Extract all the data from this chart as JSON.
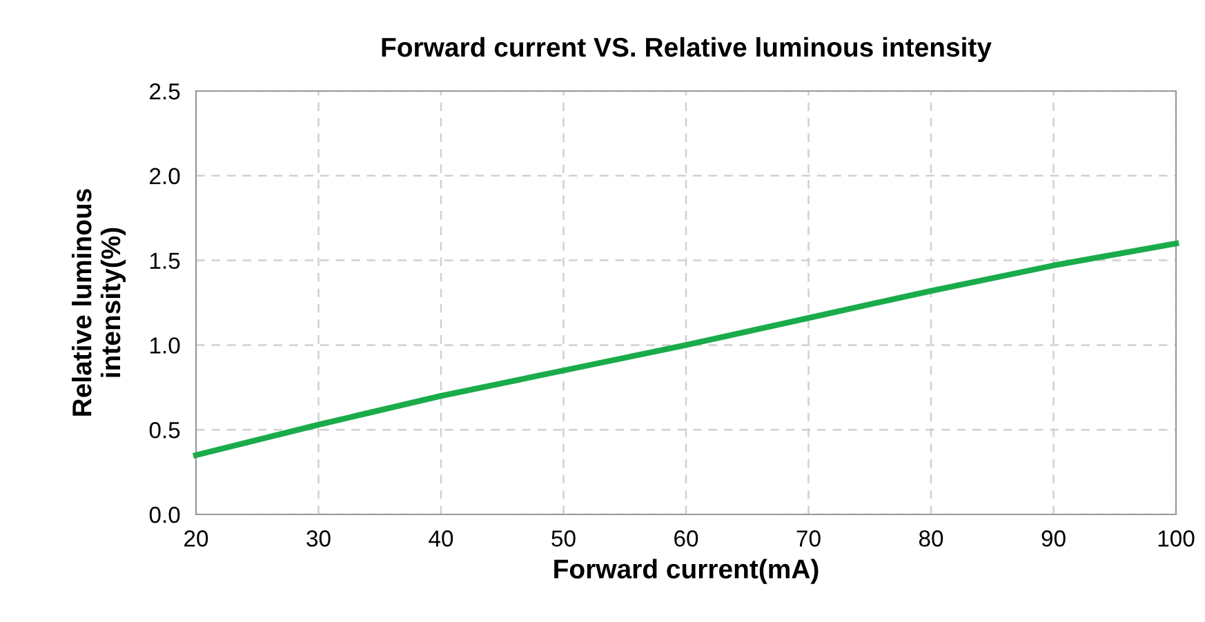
{
  "chart_data": {
    "type": "line",
    "title": "Forward current VS. Relative luminous intensity",
    "xlabel": "Forward current(mA)",
    "ylabel": "Relative luminous\nintensity(%)",
    "x": [
      20,
      30,
      40,
      50,
      60,
      70,
      80,
      90,
      100
    ],
    "series": [
      {
        "color": "#1aab4a",
        "values": [
          0.35,
          0.53,
          0.7,
          0.85,
          1.0,
          1.16,
          1.32,
          1.47,
          1.6
        ]
      }
    ],
    "xlim": [
      20,
      100
    ],
    "xticks": [
      20,
      30,
      40,
      50,
      60,
      70,
      80,
      90,
      100
    ],
    "ylim": [
      0,
      2.5
    ],
    "yticks": [
      {
        "value": 0,
        "label": "0.0"
      },
      {
        "value": 0.5,
        "label": "0.5"
      },
      {
        "value": 1,
        "label": "1.0"
      },
      {
        "value": 1.5,
        "label": "1.5"
      },
      {
        "value": 2,
        "label": "2.0"
      },
      {
        "value": 2.5,
        "label": "2.5"
      }
    ],
    "grid": true,
    "line_style": "solid",
    "marker": "none",
    "legend": false
  }
}
